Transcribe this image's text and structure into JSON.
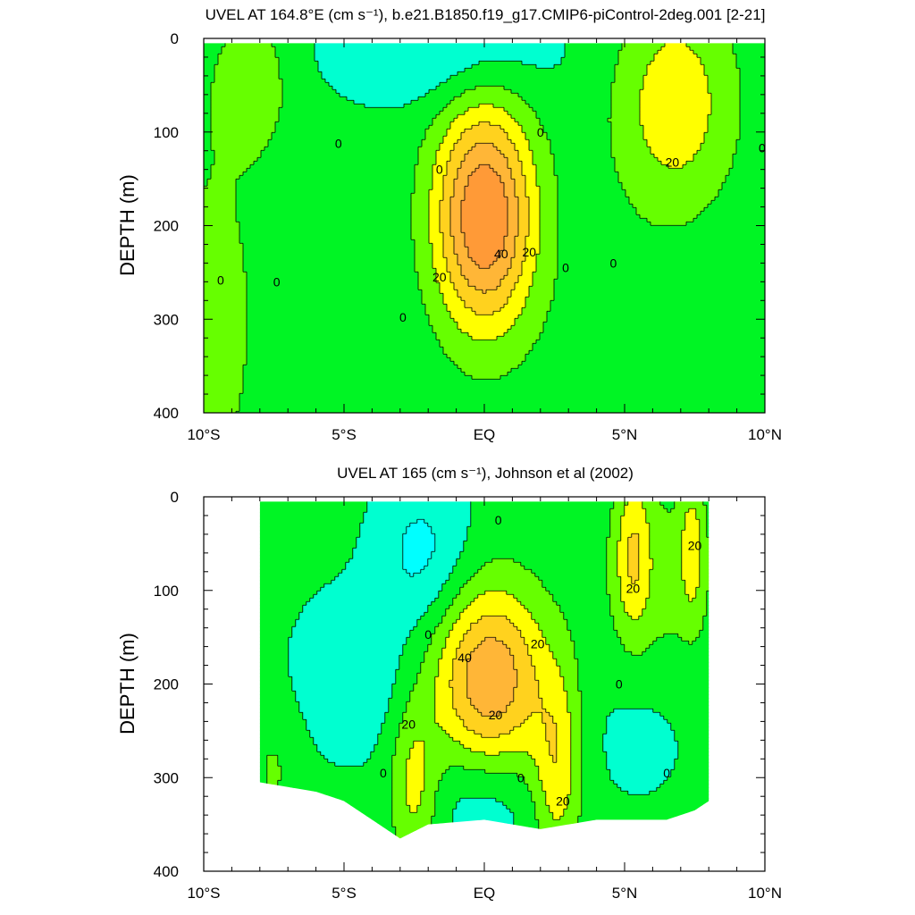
{
  "chart_data": [
    {
      "type": "contour",
      "title": "UVEL AT 164.8°E (cm s⁻¹), b.e21.B1850.f19_g17.CMIP6-piControl-2deg.001 [2-21]",
      "ylabel": "DEPTH (m)",
      "xlabel": "",
      "x_tick_labels": [
        "10°S",
        "5°S",
        "EQ",
        "5°N",
        "10°N"
      ],
      "x_ticks": [
        -10,
        -5,
        0,
        5,
        10
      ],
      "y_tick_labels": [
        "0",
        "100",
        "200",
        "300",
        "400"
      ],
      "y_ticks": [
        0,
        100,
        200,
        300,
        400
      ],
      "xlim": [
        -10,
        10
      ],
      "ylim": [
        400,
        0
      ],
      "data_extent": {
        "lat": [
          -10,
          10
        ],
        "depth": [
          5,
          400
        ]
      },
      "contour_levels": [
        -10,
        0,
        10,
        20,
        30,
        40,
        50
      ],
      "fill_colors": [
        "#3ce8ff",
        "#00ffd0",
        "#00f524",
        "#66ff00",
        "#ffff00",
        "#ffd21e",
        "#ffb637",
        "#ff9a37"
      ],
      "features": [
        {
          "lat": 0.0,
          "depth": 190,
          "amp": 58,
          "sx": 1.25,
          "sy": 85
        },
        {
          "lat": 6.8,
          "depth": 70,
          "amp": 24,
          "sx": 1.5,
          "sy": 80
        },
        {
          "lat": -8.2,
          "depth": 45,
          "amp": 12,
          "sx": 0.9,
          "sy": 50
        },
        {
          "lat": -1.5,
          "depth": 15,
          "amp": -14,
          "sx": 2.8,
          "sy": 40
        },
        {
          "lat": -9.6,
          "depth": 300,
          "amp": 9,
          "sx": 1.6,
          "sy": 200
        },
        {
          "lat": 4.5,
          "depth": 380,
          "amp": 6,
          "sx": 1.6,
          "sy": 120
        }
      ],
      "contour_labels": [
        {
          "text": "0",
          "lat": -5.2,
          "depth": 112
        },
        {
          "text": "0",
          "lat": -1.6,
          "depth": 140
        },
        {
          "text": "0",
          "lat": 2.0,
          "depth": 100
        },
        {
          "text": "0",
          "lat": 9.9,
          "depth": 117
        },
        {
          "text": "20",
          "lat": 6.7,
          "depth": 132
        },
        {
          "text": "40",
          "lat": 0.6,
          "depth": 230
        },
        {
          "text": "20",
          "lat": 1.6,
          "depth": 228
        },
        {
          "text": "20",
          "lat": -1.6,
          "depth": 255
        },
        {
          "text": "0",
          "lat": -9.4,
          "depth": 258
        },
        {
          "text": "0",
          "lat": -7.4,
          "depth": 260
        },
        {
          "text": "0",
          "lat": -2.9,
          "depth": 298
        },
        {
          "text": "0",
          "lat": 2.9,
          "depth": 245
        },
        {
          "text": "0",
          "lat": 4.6,
          "depth": 240
        }
      ]
    },
    {
      "type": "contour",
      "title": "UVEL AT 165 (cm s⁻¹), Johnson et al (2002)",
      "ylabel": "DEPTH (m)",
      "xlabel": "",
      "x_tick_labels": [
        "10°S",
        "5°S",
        "EQ",
        "5°N",
        "10°N"
      ],
      "x_ticks": [
        -10,
        -5,
        0,
        5,
        10
      ],
      "y_tick_labels": [
        "0",
        "100",
        "200",
        "300",
        "400"
      ],
      "y_ticks": [
        0,
        100,
        200,
        300,
        400
      ],
      "xlim": [
        -10,
        10
      ],
      "ylim": [
        400,
        0
      ],
      "data_extent": {
        "lat": [
          -8,
          8
        ],
        "depth": [
          5,
          365
        ]
      },
      "data_bottom_depth": [
        {
          "lat": -8.0,
          "depth": 305
        },
        {
          "lat": -6.0,
          "depth": 315
        },
        {
          "lat": -5.0,
          "depth": 325
        },
        {
          "lat": -4.0,
          "depth": 345
        },
        {
          "lat": -3.0,
          "depth": 365
        },
        {
          "lat": -2.0,
          "depth": 350
        },
        {
          "lat": 0.0,
          "depth": 345
        },
        {
          "lat": 2.0,
          "depth": 355
        },
        {
          "lat": 4.0,
          "depth": 345
        },
        {
          "lat": 6.5,
          "depth": 345
        },
        {
          "lat": 7.5,
          "depth": 335
        },
        {
          "lat": 8.0,
          "depth": 325
        }
      ],
      "contour_levels": [
        -10,
        0,
        10,
        20,
        30,
        40,
        50
      ],
      "fill_colors": [
        "#00ffff",
        "#00ffd0",
        "#00f524",
        "#66ff00",
        "#ffff00",
        "#ffd21e",
        "#ffb637",
        "#ff9a37"
      ],
      "features": [
        {
          "lat": 0.2,
          "depth": 195,
          "amp": 46,
          "sx": 1.4,
          "sy": 70
        },
        {
          "lat": -2.5,
          "depth": 310,
          "amp": 20,
          "sx": 0.6,
          "sy": 60
        },
        {
          "lat": 2.6,
          "depth": 290,
          "amp": 24,
          "sx": 0.6,
          "sy": 70
        },
        {
          "lat": 0.0,
          "depth": 320,
          "amp": -12,
          "sx": 1.3,
          "sy": 45
        },
        {
          "lat": 5.3,
          "depth": 60,
          "amp": 22,
          "sx": 0.45,
          "sy": 60
        },
        {
          "lat": 7.4,
          "depth": 55,
          "amp": 18,
          "sx": 0.3,
          "sy": 50
        },
        {
          "lat": 6.3,
          "depth": 90,
          "amp": 10,
          "sx": 1.5,
          "sy": 80
        },
        {
          "lat": -2.2,
          "depth": 60,
          "amp": -16,
          "sx": 1.2,
          "sy": 60
        },
        {
          "lat": -4.8,
          "depth": 190,
          "amp": -12,
          "sx": 1.4,
          "sy": 60
        },
        {
          "lat": 5.5,
          "depth": 250,
          "amp": -6,
          "sx": 1.5,
          "sy": 60
        },
        {
          "lat": -7.5,
          "depth": 290,
          "amp": 8,
          "sx": 0.7,
          "sy": 50
        }
      ],
      "contour_labels": [
        {
          "text": "0",
          "lat": 0.5,
          "depth": 25
        },
        {
          "text": "20",
          "lat": 7.5,
          "depth": 52
        },
        {
          "text": "20",
          "lat": 5.3,
          "depth": 98
        },
        {
          "text": "0",
          "lat": -2.0,
          "depth": 147
        },
        {
          "text": "20",
          "lat": 1.9,
          "depth": 157
        },
        {
          "text": "40",
          "lat": -0.7,
          "depth": 172
        },
        {
          "text": "0",
          "lat": 4.8,
          "depth": 200
        },
        {
          "text": "20",
          "lat": -2.7,
          "depth": 243
        },
        {
          "text": "20",
          "lat": 0.4,
          "depth": 233
        },
        {
          "text": "0",
          "lat": -3.6,
          "depth": 295
        },
        {
          "text": "0",
          "lat": 1.3,
          "depth": 300
        },
        {
          "text": "0",
          "lat": 6.5,
          "depth": 295
        },
        {
          "text": "20",
          "lat": 2.8,
          "depth": 325
        }
      ]
    }
  ]
}
